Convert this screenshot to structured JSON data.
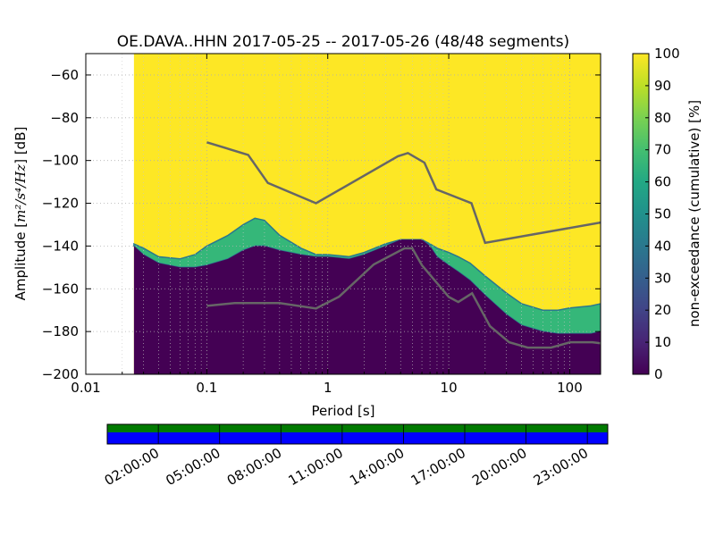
{
  "chart_data": [
    {
      "type": "heatmap",
      "title": "OE.DAVA..HHN   2017-05-25 -- 2017-05-26  (48/48 segments)",
      "xlabel": "Period [s]",
      "ylabel": "Amplitude [m²/s⁴/Hz] [dB]",
      "ylabel_prefix": "Amplitude [",
      "ylabel_unit": "m²/s⁴/Hz",
      "ylabel_suffix": "] [dB]",
      "xscale": "log",
      "xlim": [
        0.01,
        180
      ],
      "ylim": [
        -200,
        -50
      ],
      "grid": true,
      "x_ticks": [
        {
          "value": 0.01,
          "label": "0.01"
        },
        {
          "value": 0.1,
          "label": "0.1"
        },
        {
          "value": 1,
          "label": "1"
        },
        {
          "value": 10,
          "label": "10"
        },
        {
          "value": 100,
          "label": "100"
        }
      ],
      "y_ticks": [
        {
          "value": -60,
          "label": "−60"
        },
        {
          "value": -80,
          "label": "−80"
        },
        {
          "value": -100,
          "label": "−100"
        },
        {
          "value": -120,
          "label": "−120"
        },
        {
          "value": -140,
          "label": "−140"
        },
        {
          "value": -160,
          "label": "−160"
        },
        {
          "value": -180,
          "label": "−180"
        },
        {
          "value": -200,
          "label": "−200"
        }
      ],
      "data_start_period": 0.025,
      "psd_bands": {
        "period": [
          0.025,
          0.03,
          0.04,
          0.06,
          0.08,
          0.1,
          0.15,
          0.2,
          0.25,
          0.3,
          0.4,
          0.6,
          0.8,
          1,
          1.5,
          2,
          3,
          4,
          5,
          6,
          7,
          8,
          10,
          12,
          15,
          20,
          30,
          40,
          60,
          80,
          100,
          150,
          180
        ],
        "low": [
          -140,
          -144,
          -148,
          -150,
          -150,
          -149,
          -146,
          -142,
          -140,
          -140,
          -142,
          -144,
          -145,
          -145,
          -146,
          -144,
          -140,
          -137,
          -137,
          -137,
          -140,
          -145,
          -149,
          -152,
          -156,
          -163,
          -172,
          -177,
          -180,
          -181,
          -181,
          -181,
          -180
        ],
        "high": [
          -139,
          -141,
          -145,
          -146,
          -144,
          -140,
          -135,
          -130,
          -127,
          -128,
          -135,
          -141,
          -144,
          -144,
          -145,
          -143,
          -139,
          -137,
          -137,
          -137,
          -139,
          -141,
          -143,
          -145,
          -148,
          -154,
          -162,
          -167,
          -170,
          -170,
          -169,
          -168,
          -167
        ]
      },
      "noise_models": {
        "high": {
          "period": [
            0.1,
            0.22,
            0.32,
            0.8,
            3.8,
            4.6,
            6.3,
            7.9,
            15.4,
            20,
            180
          ],
          "db": [
            -91.5,
            -97.4,
            -110.5,
            -120,
            -98,
            -96.5,
            -101,
            -113.5,
            -120,
            -138.5,
            -129
          ]
        },
        "low": {
          "period": [
            0.1,
            0.17,
            0.4,
            0.8,
            1.24,
            2.4,
            4.3,
            5,
            6,
            10,
            12,
            15.6,
            21.9,
            31.6,
            45,
            70,
            101,
            154,
            180
          ],
          "db": [
            -168,
            -166.7,
            -166.7,
            -169.2,
            -163.7,
            -148.6,
            -141.1,
            -141.1,
            -149,
            -163.8,
            -166.2,
            -162.1,
            -177.5,
            -185,
            -187.5,
            -187.5,
            -185,
            -185,
            -185.5
          ]
        }
      }
    },
    {
      "type": "colorbar",
      "label": "non-exceedance (cumulative) [%]",
      "range": [
        0,
        100
      ],
      "ticks": [
        "0",
        "10",
        "20",
        "30",
        "40",
        "50",
        "60",
        "70",
        "80",
        "90",
        "100"
      ]
    },
    {
      "type": "timeline",
      "tick_labels": [
        "02:00:00",
        "05:00:00",
        "08:00:00",
        "11:00:00",
        "14:00:00",
        "17:00:00",
        "20:00:00",
        "23:00:00"
      ],
      "tick_hours": [
        2,
        5,
        8,
        11,
        14,
        17,
        20,
        23
      ],
      "range_hours": [
        -0.5,
        24
      ],
      "data_color": "#007a00",
      "used_color": "#0000ff"
    }
  ],
  "colors": {
    "viridis_low": "#440154",
    "viridis_high": "#fde725",
    "noise_model": "#666666"
  }
}
